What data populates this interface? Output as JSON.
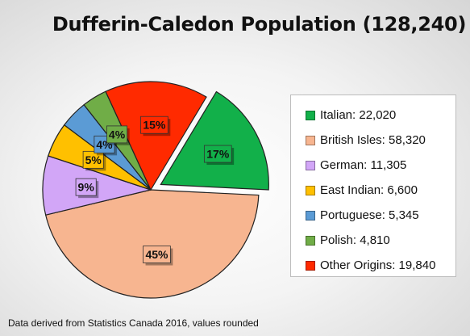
{
  "chart_data": {
    "type": "pie",
    "title": "Dufferin-Caledon Population (128,240)",
    "slices": [
      {
        "name": "Italian",
        "value": 22020,
        "legend": "Italian: 22,020",
        "percent_label": "17%",
        "color": "#12b04a",
        "exploded": true
      },
      {
        "name": "British Isles",
        "value": 58320,
        "legend": "British Isles: 58,320",
        "percent_label": "45%",
        "color": "#f7b590",
        "exploded": false
      },
      {
        "name": "German",
        "value": 11305,
        "legend": "German: 11,305",
        "percent_label": "9%",
        "color": "#d2a6f7",
        "exploded": false
      },
      {
        "name": "East Indian",
        "value": 6600,
        "legend": "East Indian: 6,600",
        "percent_label": "5%",
        "color": "#ffc000",
        "exploded": false
      },
      {
        "name": "Portuguese",
        "value": 5345,
        "legend": "Portuguese: 5,345",
        "percent_label": "4%",
        "color": "#5b9bd5",
        "exploded": false
      },
      {
        "name": "Polish",
        "value": 4810,
        "legend": "Polish: 4,810",
        "percent_label": "4%",
        "color": "#70ad47",
        "exploded": false
      },
      {
        "name": "Other Origins",
        "value": 19840,
        "legend": "Other Origins: 19,840",
        "percent_label": "15%",
        "color": "#ff2a00",
        "exploded": false
      }
    ],
    "legend_position": "right",
    "note": "Data derived from Statistics Canada 2016, values rounded"
  }
}
